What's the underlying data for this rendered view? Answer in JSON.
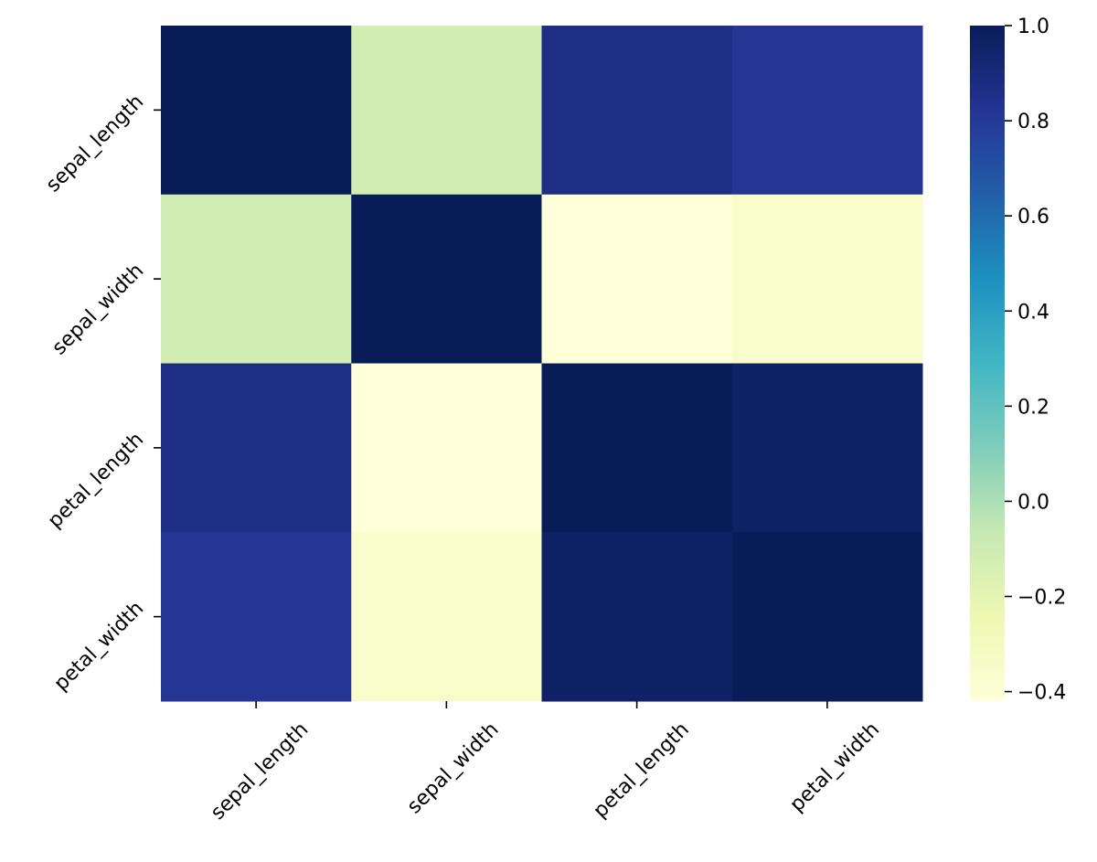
{
  "chart_data": {
    "type": "heatmap",
    "title": "",
    "xlabel": "",
    "ylabel": "",
    "x_labels": [
      "sepal_length",
      "sepal_width",
      "petal_length",
      "petal_width"
    ],
    "y_labels": [
      "sepal_length",
      "sepal_width",
      "petal_length",
      "petal_width"
    ],
    "values": [
      [
        1.0,
        -0.11,
        0.87,
        0.82
      ],
      [
        -0.11,
        1.0,
        -0.42,
        -0.36
      ],
      [
        0.87,
        -0.42,
        1.0,
        0.96
      ],
      [
        0.82,
        -0.36,
        0.96,
        1.0
      ]
    ],
    "colormap": "YlGnBu",
    "vmin": -0.42,
    "vmax": 1.0,
    "colorbar": {
      "ticks": [
        1.0,
        0.8,
        0.6,
        0.4,
        0.2,
        0.0,
        -0.2,
        -0.4
      ],
      "tick_labels": [
        "1.0",
        "0.8",
        "0.6",
        "0.4",
        "0.2",
        "0.0",
        "−0.2",
        "−0.4"
      ]
    },
    "tick_label_rotation": 45,
    "grid": false,
    "annotations": false
  }
}
